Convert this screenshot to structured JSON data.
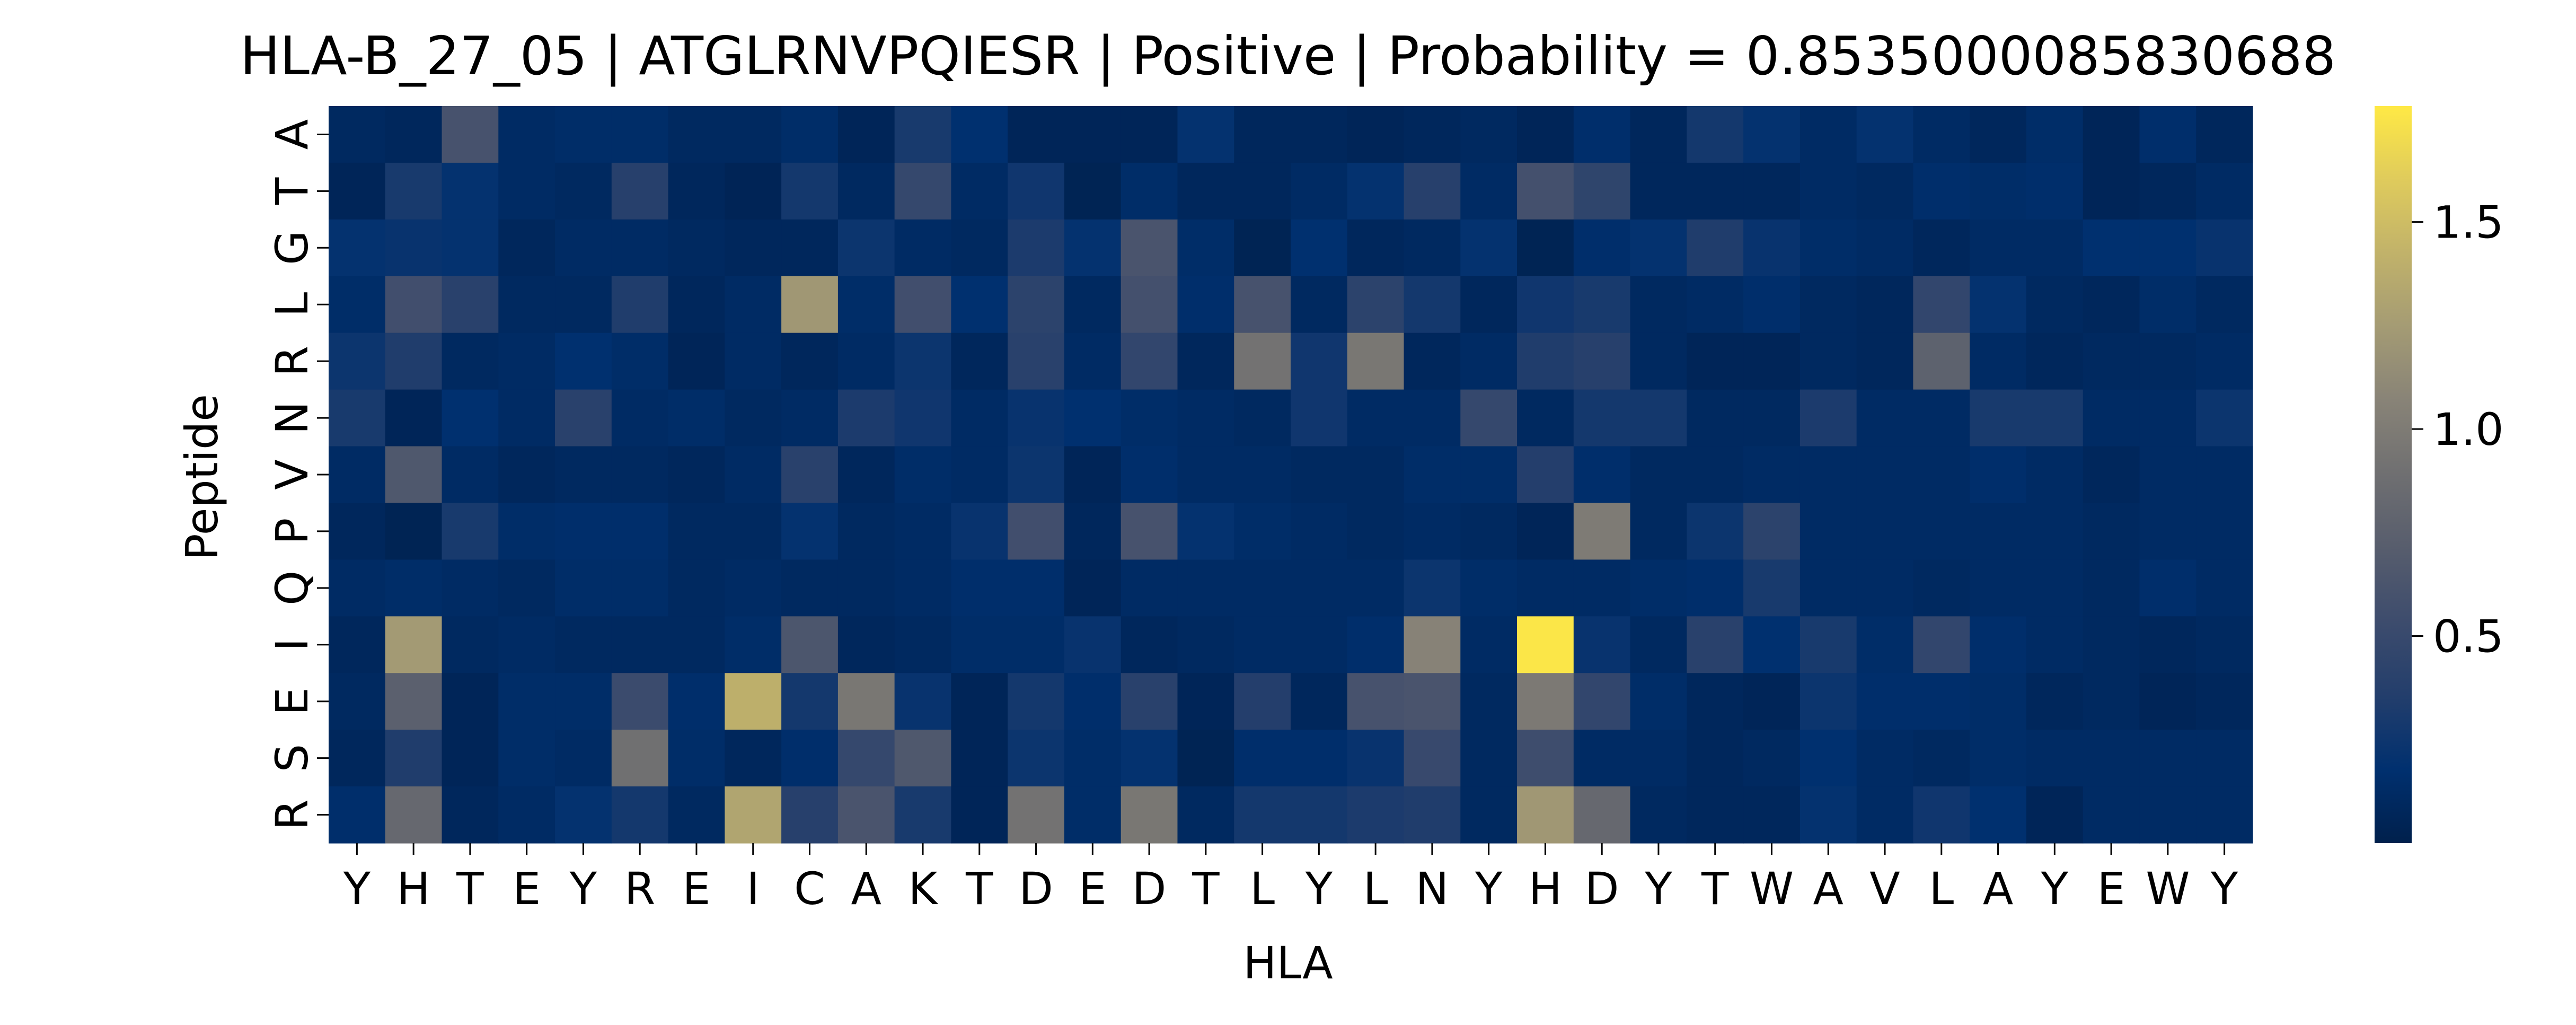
{
  "chart_data": {
    "type": "heatmap",
    "title": "HLA-B_27_05 | ATGLRNVPQIESR | Positive | Probability = 0.8535000085830688",
    "xlabel": "HLA",
    "ylabel": "Peptide",
    "x_categories": [
      "Y",
      "H",
      "T",
      "E",
      "Y",
      "R",
      "E",
      "I",
      "C",
      "A",
      "K",
      "T",
      "D",
      "E",
      "D",
      "T",
      "L",
      "Y",
      "L",
      "N",
      "Y",
      "H",
      "D",
      "Y",
      "T",
      "W",
      "A",
      "V",
      "L",
      "A",
      "Y",
      "E",
      "W",
      "Y"
    ],
    "y_categories": [
      "A",
      "T",
      "G",
      "L",
      "R",
      "N",
      "V",
      "P",
      "Q",
      "I",
      "E",
      "S",
      "R"
    ],
    "colormap": "cividis",
    "colorbar": {
      "min": 0.0,
      "max": 1.78,
      "ticks": [
        0.5,
        1.0,
        1.5
      ],
      "tick_labels": [
        "0.5",
        "1.0",
        "1.5"
      ]
    },
    "values": [
      [
        0.1,
        0.08,
        0.6,
        0.12,
        0.14,
        0.14,
        0.1,
        0.1,
        0.14,
        0.06,
        0.3,
        0.18,
        0.06,
        0.06,
        0.06,
        0.2,
        0.08,
        0.08,
        0.06,
        0.08,
        0.1,
        0.06,
        0.16,
        0.08,
        0.28,
        0.2,
        0.12,
        0.2,
        0.12,
        0.08,
        0.14,
        0.06,
        0.16,
        0.08
      ],
      [
        0.06,
        0.3,
        0.2,
        0.12,
        0.1,
        0.38,
        0.08,
        0.05,
        0.28,
        0.1,
        0.48,
        0.12,
        0.26,
        0.04,
        0.14,
        0.08,
        0.08,
        0.12,
        0.2,
        0.38,
        0.12,
        0.58,
        0.44,
        0.08,
        0.08,
        0.08,
        0.12,
        0.1,
        0.16,
        0.14,
        0.16,
        0.06,
        0.08,
        0.12
      ],
      [
        0.2,
        0.22,
        0.2,
        0.08,
        0.12,
        0.12,
        0.1,
        0.08,
        0.08,
        0.24,
        0.12,
        0.1,
        0.32,
        0.2,
        0.62,
        0.14,
        0.04,
        0.18,
        0.08,
        0.1,
        0.2,
        0.04,
        0.16,
        0.2,
        0.34,
        0.22,
        0.14,
        0.12,
        0.08,
        0.12,
        0.12,
        0.18,
        0.18,
        0.22
      ],
      [
        0.14,
        0.56,
        0.4,
        0.1,
        0.1,
        0.34,
        0.08,
        0.12,
        1.22,
        0.14,
        0.56,
        0.18,
        0.42,
        0.1,
        0.58,
        0.16,
        0.6,
        0.1,
        0.42,
        0.28,
        0.08,
        0.26,
        0.3,
        0.1,
        0.12,
        0.16,
        0.1,
        0.08,
        0.46,
        0.2,
        0.1,
        0.08,
        0.14,
        0.1
      ],
      [
        0.24,
        0.34,
        0.1,
        0.12,
        0.18,
        0.14,
        0.06,
        0.12,
        0.08,
        0.12,
        0.24,
        0.08,
        0.4,
        0.12,
        0.46,
        0.08,
        0.92,
        0.26,
        0.96,
        0.08,
        0.12,
        0.34,
        0.38,
        0.1,
        0.06,
        0.06,
        0.1,
        0.08,
        0.76,
        0.12,
        0.08,
        0.1,
        0.1,
        0.12
      ],
      [
        0.3,
        0.06,
        0.18,
        0.12,
        0.4,
        0.12,
        0.14,
        0.1,
        0.12,
        0.32,
        0.26,
        0.12,
        0.22,
        0.18,
        0.14,
        0.12,
        0.1,
        0.26,
        0.12,
        0.12,
        0.48,
        0.1,
        0.28,
        0.28,
        0.1,
        0.1,
        0.32,
        0.12,
        0.12,
        0.3,
        0.3,
        0.12,
        0.12,
        0.24
      ],
      [
        0.12,
        0.66,
        0.12,
        0.08,
        0.1,
        0.1,
        0.08,
        0.12,
        0.4,
        0.08,
        0.14,
        0.12,
        0.24,
        0.06,
        0.16,
        0.12,
        0.12,
        0.1,
        0.1,
        0.14,
        0.14,
        0.36,
        0.16,
        0.1,
        0.1,
        0.12,
        0.12,
        0.12,
        0.12,
        0.16,
        0.12,
        0.08,
        0.12,
        0.12
      ],
      [
        0.08,
        0.04,
        0.3,
        0.14,
        0.16,
        0.16,
        0.1,
        0.1,
        0.2,
        0.1,
        0.12,
        0.22,
        0.56,
        0.08,
        0.6,
        0.2,
        0.14,
        0.12,
        0.1,
        0.12,
        0.1,
        0.06,
        1.0,
        0.1,
        0.24,
        0.42,
        0.12,
        0.12,
        0.12,
        0.12,
        0.12,
        0.1,
        0.12,
        0.12
      ],
      [
        0.12,
        0.14,
        0.12,
        0.1,
        0.14,
        0.14,
        0.1,
        0.12,
        0.1,
        0.1,
        0.12,
        0.16,
        0.16,
        0.06,
        0.12,
        0.12,
        0.12,
        0.12,
        0.12,
        0.24,
        0.14,
        0.12,
        0.12,
        0.14,
        0.16,
        0.3,
        0.12,
        0.12,
        0.1,
        0.12,
        0.12,
        0.1,
        0.16,
        0.12
      ],
      [
        0.08,
        1.24,
        0.1,
        0.12,
        0.1,
        0.1,
        0.1,
        0.14,
        0.64,
        0.08,
        0.1,
        0.14,
        0.14,
        0.22,
        0.08,
        0.1,
        0.12,
        0.12,
        0.16,
        1.06,
        0.12,
        1.76,
        0.22,
        0.1,
        0.4,
        0.18,
        0.3,
        0.14,
        0.46,
        0.16,
        0.12,
        0.1,
        0.08,
        0.1
      ],
      [
        0.1,
        0.74,
        0.06,
        0.14,
        0.14,
        0.52,
        0.16,
        1.4,
        0.28,
        0.96,
        0.22,
        0.06,
        0.28,
        0.16,
        0.4,
        0.06,
        0.36,
        0.08,
        0.6,
        0.62,
        0.1,
        0.98,
        0.46,
        0.14,
        0.08,
        0.06,
        0.24,
        0.16,
        0.16,
        0.14,
        0.08,
        0.1,
        0.06,
        0.08
      ],
      [
        0.08,
        0.34,
        0.06,
        0.14,
        0.12,
        0.9,
        0.14,
        0.08,
        0.16,
        0.48,
        0.66,
        0.06,
        0.24,
        0.14,
        0.2,
        0.04,
        0.16,
        0.16,
        0.22,
        0.5,
        0.1,
        0.54,
        0.12,
        0.12,
        0.08,
        0.1,
        0.18,
        0.12,
        0.1,
        0.14,
        0.12,
        0.12,
        0.12,
        0.12
      ],
      [
        0.16,
        0.82,
        0.08,
        0.12,
        0.2,
        0.28,
        0.1,
        1.32,
        0.38,
        0.62,
        0.3,
        0.06,
        0.92,
        0.14,
        0.96,
        0.1,
        0.28,
        0.28,
        0.32,
        0.34,
        0.1,
        1.22,
        0.82,
        0.1,
        0.08,
        0.08,
        0.2,
        0.12,
        0.26,
        0.18,
        0.06,
        0.12,
        0.12,
        0.12
      ]
    ]
  }
}
